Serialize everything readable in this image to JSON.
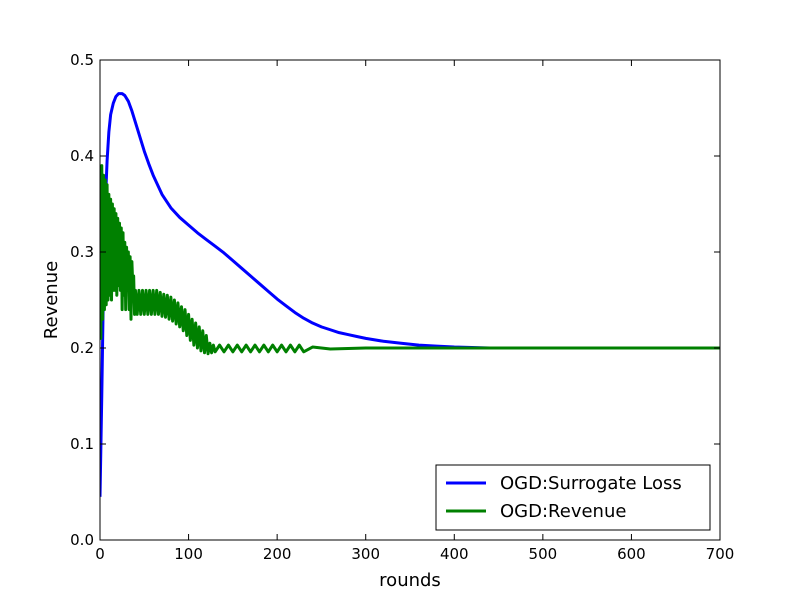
{
  "chart_data": {
    "type": "line",
    "xlabel": "rounds",
    "ylabel": "Revenue",
    "xlim": [
      0,
      700
    ],
    "ylim": [
      0.0,
      0.5
    ],
    "x_ticks": [
      "0",
      "100",
      "200",
      "300",
      "400",
      "500",
      "600",
      "700"
    ],
    "y_ticks": [
      "0.0",
      "0.1",
      "0.2",
      "0.3",
      "0.4",
      "0.5"
    ],
    "grid": false,
    "legend_position": "lower-right",
    "series": [
      {
        "name": "OGD:Surrogate Loss",
        "color": "#0000ff",
        "x": [
          0,
          2,
          4,
          6,
          8,
          10,
          12,
          15,
          18,
          21,
          25,
          28,
          32,
          36,
          40,
          45,
          50,
          55,
          60,
          70,
          80,
          90,
          100,
          110,
          120,
          130,
          140,
          150,
          160,
          170,
          180,
          190,
          200,
          210,
          220,
          230,
          240,
          250,
          260,
          270,
          280,
          290,
          300,
          320,
          340,
          360,
          380,
          400,
          420,
          440,
          460,
          480,
          500,
          550,
          600,
          650,
          700
        ],
        "y": [
          0.045,
          0.15,
          0.27,
          0.35,
          0.395,
          0.425,
          0.443,
          0.455,
          0.462,
          0.465,
          0.465,
          0.463,
          0.457,
          0.447,
          0.435,
          0.42,
          0.405,
          0.392,
          0.38,
          0.36,
          0.346,
          0.336,
          0.328,
          0.32,
          0.313,
          0.306,
          0.299,
          0.291,
          0.283,
          0.275,
          0.267,
          0.259,
          0.251,
          0.244,
          0.237,
          0.231,
          0.226,
          0.222,
          0.219,
          0.216,
          0.214,
          0.212,
          0.21,
          0.207,
          0.205,
          0.203,
          0.202,
          0.201,
          0.2005,
          0.2,
          0.2,
          0.2,
          0.2,
          0.2,
          0.2,
          0.2,
          0.2
        ]
      },
      {
        "name": "OGD:Revenue",
        "color": "#008000",
        "x": [
          0,
          1,
          2,
          3,
          4,
          5,
          6,
          7,
          8,
          9,
          10,
          11,
          12,
          13,
          14,
          15,
          16,
          17,
          18,
          19,
          20,
          21,
          22,
          23,
          24,
          25,
          26,
          27,
          28,
          29,
          30,
          31,
          32,
          33,
          34,
          35,
          36,
          37,
          38,
          39,
          40,
          42,
          44,
          46,
          48,
          50,
          52,
          54,
          56,
          58,
          60,
          62,
          64,
          66,
          68,
          70,
          72,
          74,
          76,
          78,
          80,
          82,
          84,
          86,
          88,
          90,
          92,
          94,
          96,
          98,
          100,
          102,
          104,
          106,
          108,
          110,
          112,
          114,
          116,
          118,
          120,
          122,
          124,
          126,
          128,
          130,
          135,
          140,
          145,
          150,
          155,
          160,
          165,
          170,
          175,
          180,
          185,
          190,
          195,
          200,
          205,
          210,
          215,
          220,
          225,
          230,
          240,
          260,
          300,
          400,
          500,
          600,
          700
        ],
        "y": [
          0.385,
          0.21,
          0.39,
          0.23,
          0.38,
          0.24,
          0.375,
          0.245,
          0.37,
          0.25,
          0.36,
          0.255,
          0.355,
          0.25,
          0.35,
          0.26,
          0.345,
          0.26,
          0.34,
          0.255,
          0.335,
          0.265,
          0.33,
          0.26,
          0.325,
          0.24,
          0.32,
          0.255,
          0.31,
          0.24,
          0.305,
          0.26,
          0.3,
          0.24,
          0.295,
          0.23,
          0.29,
          0.265,
          0.275,
          0.235,
          0.26,
          0.235,
          0.26,
          0.235,
          0.26,
          0.235,
          0.26,
          0.235,
          0.26,
          0.235,
          0.26,
          0.235,
          0.26,
          0.235,
          0.258,
          0.233,
          0.256,
          0.232,
          0.255,
          0.23,
          0.253,
          0.228,
          0.25,
          0.225,
          0.247,
          0.222,
          0.243,
          0.218,
          0.24,
          0.213,
          0.235,
          0.208,
          0.23,
          0.203,
          0.226,
          0.2,
          0.222,
          0.197,
          0.218,
          0.195,
          0.213,
          0.194,
          0.205,
          0.195,
          0.203,
          0.196,
          0.203,
          0.196,
          0.203,
          0.196,
          0.203,
          0.196,
          0.203,
          0.196,
          0.203,
          0.196,
          0.203,
          0.196,
          0.203,
          0.196,
          0.203,
          0.196,
          0.203,
          0.196,
          0.203,
          0.196,
          0.201,
          0.199,
          0.2,
          0.2,
          0.2,
          0.2,
          0.2
        ]
      }
    ]
  }
}
